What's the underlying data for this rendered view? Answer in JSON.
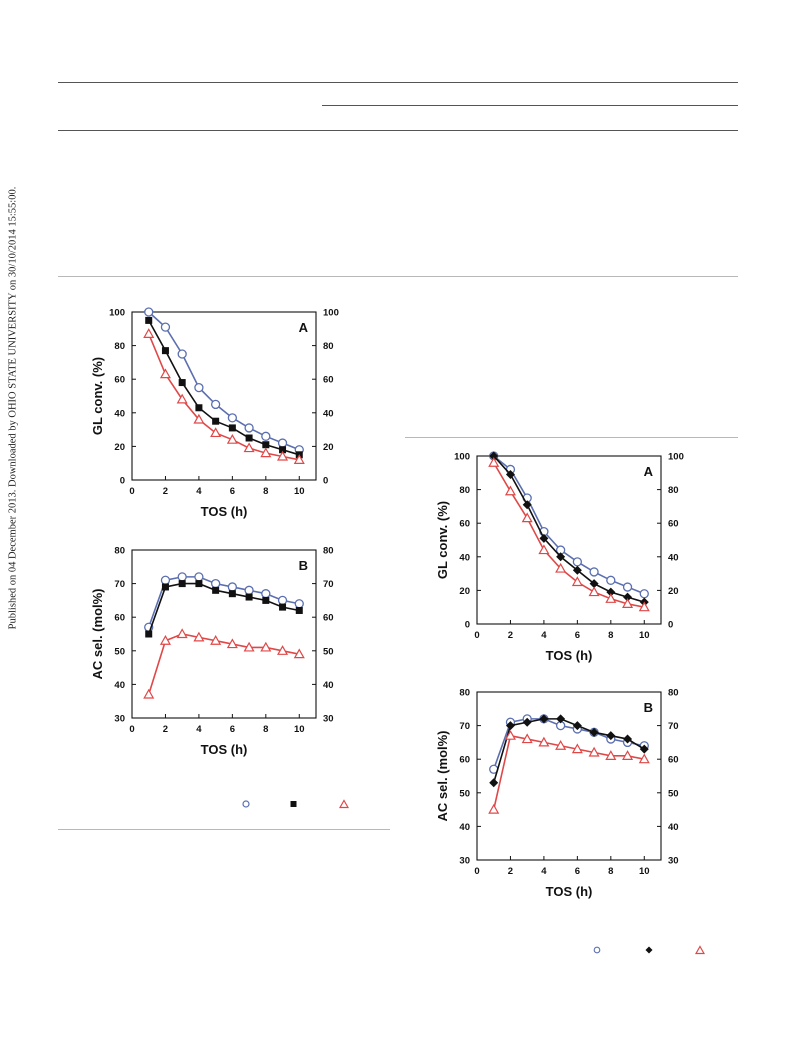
{
  "watermark": "Published on 04 December 2013. Downloaded by OHIO STATE UNIVERSITY on 30/10/2014 15:55:00.",
  "colors": {
    "series_open_circle": "#5b6fb0",
    "series_filled": "#111111",
    "series_triangle": "#e04848",
    "rules": "#555555"
  },
  "legend_markers": {
    "left": [
      "open-circle",
      "filled-square",
      "open-triangle"
    ],
    "right": [
      "open-circle",
      "filled-diamond",
      "open-triangle"
    ]
  },
  "chart_data": [
    {
      "id": "left-A",
      "type": "line",
      "panel_label": "A",
      "xlabel": "TOS (h)",
      "ylabel": "GL conv. (%)",
      "xlim": [
        0,
        11
      ],
      "ylim": [
        0,
        100
      ],
      "xticks": [
        0,
        2,
        4,
        6,
        8,
        10
      ],
      "yticks": [
        0,
        20,
        40,
        60,
        80,
        100
      ],
      "right_axis_ticks": [
        0,
        20,
        40,
        60,
        80,
        100
      ],
      "x": [
        1,
        2,
        3,
        4,
        5,
        6,
        7,
        8,
        9,
        10
      ],
      "series": [
        {
          "marker": "circle-open",
          "color": "#5b6fb0",
          "values": [
            100,
            91,
            75,
            55,
            45,
            37,
            31,
            26,
            22,
            18
          ]
        },
        {
          "marker": "square-filled",
          "color": "#111111",
          "values": [
            95,
            77,
            58,
            43,
            35,
            31,
            25,
            21,
            18,
            15
          ]
        },
        {
          "marker": "triangle-open",
          "color": "#e04848",
          "values": [
            87,
            63,
            48,
            36,
            28,
            24,
            19,
            16,
            14,
            12
          ]
        }
      ]
    },
    {
      "id": "left-B",
      "type": "line",
      "panel_label": "B",
      "xlabel": "TOS (h)",
      "ylabel": "AC sel. (mol%)",
      "xlim": [
        0,
        11
      ],
      "ylim": [
        30,
        80
      ],
      "xticks": [
        0,
        2,
        4,
        6,
        8,
        10
      ],
      "yticks": [
        30,
        40,
        50,
        60,
        70,
        80
      ],
      "right_axis_ticks": [
        30,
        40,
        50,
        60,
        70,
        80
      ],
      "x": [
        1,
        2,
        3,
        4,
        5,
        6,
        7,
        8,
        9,
        10
      ],
      "series": [
        {
          "marker": "circle-open",
          "color": "#5b6fb0",
          "values": [
            57,
            71,
            72,
            72,
            70,
            69,
            68,
            67,
            65,
            64
          ]
        },
        {
          "marker": "square-filled",
          "color": "#111111",
          "values": [
            55,
            69,
            70,
            70,
            68,
            67,
            66,
            65,
            63,
            62
          ]
        },
        {
          "marker": "triangle-open",
          "color": "#e04848",
          "values": [
            37,
            53,
            55,
            54,
            53,
            52,
            51,
            51,
            50,
            49
          ]
        }
      ]
    },
    {
      "id": "right-A",
      "type": "line",
      "panel_label": "A",
      "xlabel": "TOS (h)",
      "ylabel": "GL conv. (%)",
      "xlim": [
        0,
        11
      ],
      "ylim": [
        0,
        100
      ],
      "xticks": [
        0,
        2,
        4,
        6,
        8,
        10
      ],
      "yticks": [
        0,
        20,
        40,
        60,
        80,
        100
      ],
      "right_axis_ticks": [
        0,
        20,
        40,
        60,
        80,
        100
      ],
      "x": [
        1,
        2,
        3,
        4,
        5,
        6,
        7,
        8,
        9,
        10
      ],
      "series": [
        {
          "marker": "circle-open",
          "color": "#5b6fb0",
          "values": [
            100,
            92,
            75,
            55,
            44,
            37,
            31,
            26,
            22,
            18
          ]
        },
        {
          "marker": "diamond-filled",
          "color": "#111111",
          "values": [
            100,
            89,
            71,
            51,
            40,
            32,
            24,
            19,
            16,
            13
          ]
        },
        {
          "marker": "triangle-open",
          "color": "#e04848",
          "values": [
            96,
            79,
            63,
            44,
            33,
            25,
            19,
            15,
            12,
            10
          ]
        }
      ]
    },
    {
      "id": "right-B",
      "type": "line",
      "panel_label": "B",
      "xlabel": "TOS (h)",
      "ylabel": "AC sel. (mol%)",
      "xlim": [
        0,
        11
      ],
      "ylim": [
        30,
        80
      ],
      "xticks": [
        0,
        2,
        4,
        6,
        8,
        10
      ],
      "yticks": [
        30,
        40,
        50,
        60,
        70,
        80
      ],
      "right_axis_ticks": [
        30,
        40,
        50,
        60,
        70,
        80
      ],
      "x": [
        1,
        2,
        3,
        4,
        5,
        6,
        7,
        8,
        9,
        10
      ],
      "series": [
        {
          "marker": "circle-open",
          "color": "#5b6fb0",
          "values": [
            57,
            71,
            72,
            72,
            70,
            69,
            68,
            66,
            65,
            64
          ]
        },
        {
          "marker": "diamond-filled",
          "color": "#111111",
          "values": [
            53,
            70,
            71,
            72,
            72,
            70,
            68,
            67,
            66,
            63
          ]
        },
        {
          "marker": "triangle-open",
          "color": "#e04848",
          "values": [
            45,
            67,
            66,
            65,
            64,
            63,
            62,
            61,
            61,
            60
          ]
        }
      ]
    }
  ]
}
